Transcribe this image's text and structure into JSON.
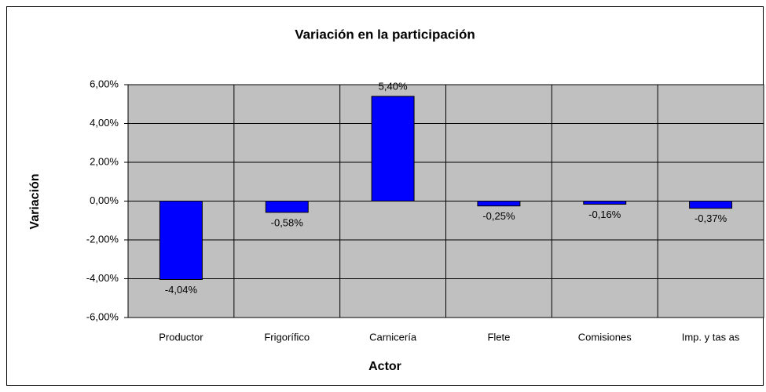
{
  "chart_data": {
    "type": "bar",
    "title": "Variación en la participación",
    "x_label": "Actor",
    "y_label": "Variación",
    "categories": [
      "Productor",
      "Frigorífico",
      "Carnicería",
      "Flete",
      "Comisiones",
      "Imp. y tas as"
    ],
    "values": [
      -4.04,
      -0.58,
      5.4,
      -0.25,
      -0.16,
      -0.37
    ],
    "value_labels": [
      "-4,04%",
      "-0,58%",
      "5,40%",
      "-0,25%",
      "-0,16%",
      "-0,37%"
    ],
    "color": "#0000ff",
    "ylim": [
      -6,
      6
    ],
    "yticks": [
      {
        "value": -6,
        "label": "-6,00%"
      },
      {
        "value": -4,
        "label": "-4,00%"
      },
      {
        "value": -2,
        "label": "-2,00%"
      },
      {
        "value": 0,
        "label": "0,00%"
      },
      {
        "value": 2,
        "label": "2,00%"
      },
      {
        "value": 4,
        "label": "4,00%"
      },
      {
        "value": 6,
        "label": "6,00%"
      }
    ],
    "grid": true
  }
}
